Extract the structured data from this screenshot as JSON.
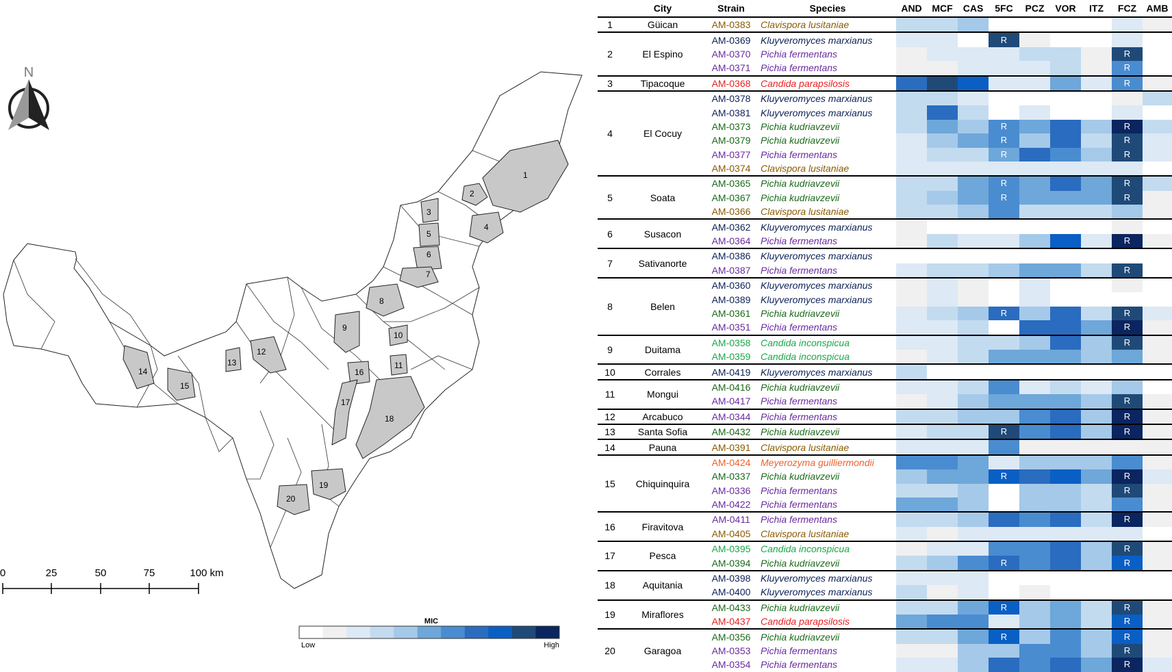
{
  "map": {
    "north_label": "N",
    "scale_labels": [
      "0",
      "25",
      "50",
      "75",
      "100 km"
    ],
    "legend": {
      "title": "MIC",
      "low_label": "Low",
      "high_label": "High",
      "colors": [
        "#ffffff",
        "#f0f0f0",
        "#dde9f5",
        "#c3dbef",
        "#a5c9e9",
        "#6ea7da",
        "#4a8cd0",
        "#2a6cbf",
        "#0a5fc4",
        "#1f4a78",
        "#0a2560"
      ]
    },
    "regions": [
      "1",
      "2",
      "3",
      "4",
      "5",
      "6",
      "7",
      "8",
      "9",
      "10",
      "11",
      "12",
      "13",
      "14",
      "15",
      "16",
      "17",
      "18",
      "19",
      "20"
    ]
  },
  "table": {
    "headers": [
      "",
      "City",
      "Strain",
      "Species",
      "AND",
      "MCF",
      "CAS",
      "5FC",
      "PCZ",
      "VOR",
      "ITZ",
      "FCZ",
      "AMB"
    ],
    "species_colors": {
      "Clavispora lusitaniae": "#8a5a00",
      "Kluyveromyces marxianus": "#0d2157",
      "Pichia fermentans": "#6a2aa0",
      "Candida parapsilosis": "#e82020",
      "Pichia kudriavzevii": "#1a6a1a",
      "Candida inconspicua": "#1aa84a",
      "Meyerozyma guilliermondii": "#f0602a"
    },
    "mic_colors": [
      "#ffffff",
      "#f0f0f0",
      "#dde9f5",
      "#c3dbef",
      "#a5c9e9",
      "#6ea7da",
      "#4a8cd0",
      "#2a6cbf",
      "#0a5fc4",
      "#1f4a78",
      "#0a2560"
    ],
    "resistant_mark": "R",
    "groups": [
      {
        "num": "1",
        "city": "Güican",
        "strains": [
          {
            "strain": "AM-0383",
            "species": "Clavispora lusitaniae",
            "mic": [
              3,
              3,
              4,
              0,
              0,
              0,
              0,
              2,
              1
            ],
            "resistant": []
          }
        ]
      },
      {
        "num": "2",
        "city": "El Espino",
        "strains": [
          {
            "strain": "AM-0369",
            "species": "Kluyveromyces marxianus",
            "mic": [
              2,
              2,
              0,
              9,
              1,
              0,
              0,
              2,
              0
            ],
            "resistant": [
              "5FC"
            ]
          },
          {
            "strain": "AM-0370",
            "species": "Pichia fermentans",
            "mic": [
              1,
              2,
              2,
              2,
              3,
              3,
              1,
              9,
              0
            ],
            "resistant": [
              "FCZ"
            ]
          },
          {
            "strain": "AM-0371",
            "species": "Pichia fermentans",
            "mic": [
              1,
              1,
              2,
              2,
              2,
              3,
              1,
              6,
              0
            ],
            "resistant": [
              "FCZ"
            ]
          }
        ]
      },
      {
        "num": "3",
        "city": "Tipacoque",
        "strains": [
          {
            "strain": "AM-0368",
            "species": "Candida parapsilosis",
            "mic": [
              7,
              9,
              8,
              2,
              2,
              5,
              2,
              6,
              1
            ],
            "resistant": [
              "FCZ"
            ]
          }
        ]
      },
      {
        "num": "4",
        "city": "El Cocuy",
        "strains": [
          {
            "strain": "AM-0378",
            "species": "Kluyveromyces marxianus",
            "mic": [
              3,
              3,
              2,
              0,
              0,
              0,
              0,
              1,
              3
            ],
            "resistant": []
          },
          {
            "strain": "AM-0381",
            "species": "Kluyveromyces marxianus",
            "mic": [
              3,
              7,
              3,
              0,
              2,
              0,
              0,
              2,
              0
            ],
            "resistant": []
          },
          {
            "strain": "AM-0373",
            "species": "Pichia kudriavzevii",
            "mic": [
              3,
              5,
              4,
              6,
              5,
              7,
              4,
              10,
              3
            ],
            "resistant": [
              "5FC",
              "FCZ"
            ]
          },
          {
            "strain": "AM-0379",
            "species": "Pichia kudriavzevii",
            "mic": [
              2,
              4,
              5,
              6,
              4,
              7,
              3,
              9,
              2
            ],
            "resistant": [
              "5FC",
              "FCZ"
            ]
          },
          {
            "strain": "AM-0377",
            "species": "Pichia fermentans",
            "mic": [
              2,
              3,
              3,
              5,
              7,
              6,
              4,
              9,
              2
            ],
            "resistant": [
              "5FC",
              "FCZ"
            ]
          },
          {
            "strain": "AM-0374",
            "species": "Clavispora lusitaniae",
            "mic": [
              2,
              2,
              2,
              2,
              2,
              2,
              2,
              2,
              0
            ],
            "resistant": []
          }
        ]
      },
      {
        "num": "5",
        "city": "Soata",
        "strains": [
          {
            "strain": "AM-0365",
            "species": "Pichia kudriavzevii",
            "mic": [
              3,
              3,
              5,
              6,
              5,
              7,
              5,
              9,
              3
            ],
            "resistant": [
              "5FC",
              "FCZ"
            ]
          },
          {
            "strain": "AM-0367",
            "species": "Pichia kudriavzevii",
            "mic": [
              3,
              4,
              5,
              6,
              5,
              5,
              5,
              9,
              1
            ],
            "resistant": [
              "5FC",
              "FCZ"
            ]
          },
          {
            "strain": "AM-0366",
            "species": "Clavispora lusitaniae",
            "mic": [
              3,
              3,
              4,
              6,
              3,
              3,
              3,
              4,
              1
            ],
            "resistant": []
          }
        ]
      },
      {
        "num": "6",
        "city": "Susacon",
        "strains": [
          {
            "strain": "AM-0362",
            "species": "Kluyveromyces marxianus",
            "mic": [
              1,
              0,
              0,
              0,
              0,
              0,
              0,
              1,
              0
            ],
            "resistant": []
          },
          {
            "strain": "AM-0364",
            "species": "Pichia fermentans",
            "mic": [
              1,
              3,
              2,
              2,
              4,
              8,
              2,
              10,
              1
            ],
            "resistant": [
              "FCZ"
            ]
          }
        ]
      },
      {
        "num": "7",
        "city": "Sativanorte",
        "strains": [
          {
            "strain": "AM-0386",
            "species": "Kluyveromyces marxianus",
            "mic": [
              0,
              0,
              0,
              0,
              0,
              0,
              0,
              0,
              0
            ],
            "resistant": []
          },
          {
            "strain": "AM-0387",
            "species": "Pichia fermentans",
            "mic": [
              2,
              3,
              3,
              4,
              5,
              5,
              3,
              9,
              0
            ],
            "resistant": [
              "FCZ"
            ]
          }
        ]
      },
      {
        "num": "8",
        "city": "Belen",
        "strains": [
          {
            "strain": "AM-0360",
            "species": "Kluyveromyces marxianus",
            "mic": [
              1,
              2,
              1,
              0,
              2,
              0,
              0,
              1,
              0
            ],
            "resistant": []
          },
          {
            "strain": "AM-0389",
            "species": "Kluyveromyces marxianus",
            "mic": [
              1,
              2,
              1,
              0,
              2,
              0,
              0,
              0,
              0
            ],
            "resistant": []
          },
          {
            "strain": "AM-0361",
            "species": "Pichia kudriavzevii",
            "mic": [
              2,
              3,
              4,
              7,
              4,
              7,
              3,
              9,
              2
            ],
            "resistant": [
              "5FC",
              "FCZ"
            ]
          },
          {
            "strain": "AM-0351",
            "species": "Pichia fermentans",
            "mic": [
              2,
              2,
              3,
              0,
              7,
              7,
              5,
              10,
              1
            ],
            "resistant": [
              "FCZ"
            ]
          }
        ]
      },
      {
        "num": "9",
        "city": "Duitama",
        "strains": [
          {
            "strain": "AM-0358",
            "species": "Candida inconspicua",
            "mic": [
              2,
              2,
              3,
              3,
              4,
              7,
              4,
              9,
              1
            ],
            "resistant": [
              "FCZ"
            ]
          },
          {
            "strain": "AM-0359",
            "species": "Candida inconspicua",
            "mic": [
              1,
              2,
              3,
              5,
              5,
              5,
              4,
              5,
              1
            ],
            "resistant": []
          }
        ]
      },
      {
        "num": "10",
        "city": "Corrales",
        "strains": [
          {
            "strain": "AM-0419",
            "species": "Kluyveromyces marxianus",
            "mic": [
              3,
              0,
              0,
              0,
              0,
              0,
              0,
              0,
              0
            ],
            "resistant": []
          }
        ]
      },
      {
        "num": "11",
        "city": "Mongui",
        "strains": [
          {
            "strain": "AM-0416",
            "species": "Pichia kudriavzevii",
            "mic": [
              2,
              2,
              3,
              6,
              2,
              3,
              2,
              4,
              0
            ],
            "resistant": []
          },
          {
            "strain": "AM-0417",
            "species": "Pichia fermentans",
            "mic": [
              1,
              2,
              4,
              5,
              5,
              5,
              4,
              9,
              1
            ],
            "resistant": [
              "FCZ"
            ]
          }
        ]
      },
      {
        "num": "12",
        "city": "Arcabuco",
        "strains": [
          {
            "strain": "AM-0344",
            "species": "Pichia fermentans",
            "mic": [
              3,
              3,
              4,
              4,
              6,
              7,
              4,
              10,
              1
            ],
            "resistant": [
              "FCZ"
            ]
          }
        ]
      },
      {
        "num": "13",
        "city": "Santa Sofia",
        "strains": [
          {
            "strain": "AM-0432",
            "species": "Pichia kudriavzevii",
            "mic": [
              2,
              3,
              3,
              9,
              6,
              7,
              4,
              10,
              1
            ],
            "resistant": [
              "5FC",
              "FCZ"
            ]
          }
        ]
      },
      {
        "num": "14",
        "city": "Pauna",
        "strains": [
          {
            "strain": "AM-0391",
            "species": "Clavispora lusitaniae",
            "mic": [
              2,
              2,
              2,
              6,
              1,
              1,
              1,
              1,
              1
            ],
            "resistant": []
          }
        ]
      },
      {
        "num": "15",
        "city": "Chiquinquira",
        "strains": [
          {
            "strain": "AM-0424",
            "species": "Meyerozyma guilliermondii",
            "mic": [
              6,
              6,
              5,
              2,
              4,
              4,
              4,
              6,
              1
            ],
            "resistant": []
          },
          {
            "strain": "AM-0337",
            "species": "Pichia kudriavzevii",
            "mic": [
              4,
              5,
              5,
              8,
              7,
              8,
              5,
              10,
              2
            ],
            "resistant": [
              "5FC",
              "FCZ"
            ]
          },
          {
            "strain": "AM-0336",
            "species": "Pichia fermentans",
            "mic": [
              3,
              3,
              4,
              0,
              4,
              4,
              3,
              9,
              1
            ],
            "resistant": [
              "FCZ"
            ]
          },
          {
            "strain": "AM-0422",
            "species": "Pichia fermentans",
            "mic": [
              5,
              5,
              4,
              0,
              4,
              4,
              3,
              6,
              1
            ],
            "resistant": []
          }
        ]
      },
      {
        "num": "16",
        "city": "Firavitova",
        "strains": [
          {
            "strain": "AM-0411",
            "species": "Pichia fermentans",
            "mic": [
              3,
              3,
              4,
              7,
              6,
              7,
              3,
              10,
              1
            ],
            "resistant": [
              "FCZ"
            ]
          },
          {
            "strain": "AM-0405",
            "species": "Clavispora lusitaniae",
            "mic": [
              2,
              1,
              2,
              2,
              2,
              2,
              2,
              2,
              0
            ],
            "resistant": []
          }
        ]
      },
      {
        "num": "17",
        "city": "Pesca",
        "strains": [
          {
            "strain": "AM-0395",
            "species": "Candida inconspicua",
            "mic": [
              1,
              2,
              2,
              6,
              6,
              7,
              4,
              9,
              1
            ],
            "resistant": [
              "FCZ"
            ]
          },
          {
            "strain": "AM-0394",
            "species": "Pichia kudriavzevii",
            "mic": [
              3,
              4,
              6,
              7,
              6,
              7,
              4,
              8,
              1
            ],
            "resistant": [
              "5FC",
              "FCZ"
            ]
          }
        ]
      },
      {
        "num": "18",
        "city": "Aquitania",
        "strains": [
          {
            "strain": "AM-0398",
            "species": "Kluyveromyces marxianus",
            "mic": [
              2,
              2,
              2,
              0,
              0,
              0,
              0,
              0,
              0
            ],
            "resistant": []
          },
          {
            "strain": "AM-0400",
            "species": "Kluyveromyces marxianus",
            "mic": [
              3,
              1,
              2,
              0,
              1,
              0,
              0,
              0,
              0
            ],
            "resistant": []
          }
        ]
      },
      {
        "num": "19",
        "city": "Miraflores",
        "strains": [
          {
            "strain": "AM-0433",
            "species": "Pichia kudriavzevii",
            "mic": [
              3,
              3,
              5,
              8,
              4,
              5,
              3,
              9,
              1
            ],
            "resistant": [
              "5FC",
              "FCZ"
            ]
          },
          {
            "strain": "AM-0437",
            "species": "Candida parapsilosis",
            "mic": [
              5,
              6,
              6,
              2,
              4,
              5,
              3,
              8,
              1
            ],
            "resistant": [
              "FCZ"
            ]
          }
        ]
      },
      {
        "num": "20",
        "city": "Garagoa",
        "strains": [
          {
            "strain": "AM-0356",
            "species": "Pichia kudriavzevii",
            "mic": [
              3,
              3,
              5,
              8,
              4,
              6,
              4,
              8,
              1
            ],
            "resistant": [
              "5FC",
              "FCZ"
            ]
          },
          {
            "strain": "AM-0353",
            "species": "Pichia fermentans",
            "mic": [
              1,
              1,
              4,
              4,
              6,
              6,
              4,
              9,
              1
            ],
            "resistant": [
              "FCZ"
            ]
          },
          {
            "strain": "AM-0354",
            "species": "Pichia fermentans",
            "mic": [
              2,
              2,
              4,
              7,
              6,
              7,
              5,
              10,
              2
            ],
            "resistant": [
              "FCZ"
            ]
          }
        ]
      }
    ]
  }
}
